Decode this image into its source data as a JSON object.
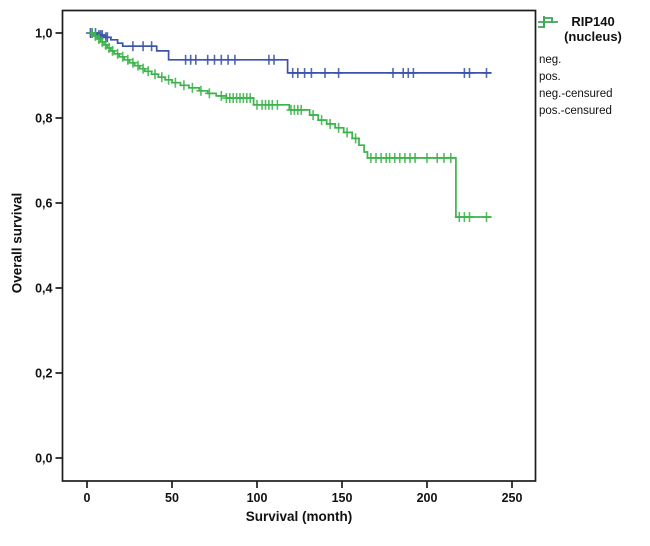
{
  "legend": {
    "title_lines": [
      "RIP140",
      "(nucleus)"
    ],
    "entries": [
      {
        "label": "neg.",
        "symbol": "step-line",
        "series": "neg"
      },
      {
        "label": "pos.",
        "symbol": "step-line",
        "series": "pos"
      },
      {
        "label": "neg.-censured",
        "symbol": "censor-cross",
        "series": "neg"
      },
      {
        "label": "pos.-censured",
        "symbol": "censor-cross",
        "series": "pos"
      }
    ]
  },
  "chart_data": {
    "type": "line",
    "subtype": "kaplan-meier-step",
    "title": "RIP140 (nucleus)",
    "grid": false,
    "legend_position": "outside-top-right",
    "frame_color": "#1c1c1c",
    "background": "#ffffff",
    "colors": {
      "neg": "#3a53a8",
      "pos": "#3cb44b"
    },
    "x_axis": {
      "label": "Survival (month)",
      "range": [
        0,
        250
      ],
      "ticks": [
        {
          "value": 0,
          "label": "0"
        },
        {
          "value": 50,
          "label": "50"
        },
        {
          "value": 100,
          "label": "100"
        },
        {
          "value": 150,
          "label": "150"
        },
        {
          "value": 200,
          "label": "200"
        },
        {
          "value": 250,
          "label": "250"
        }
      ]
    },
    "y_axis": {
      "label": "Overall survival",
      "range": [
        0.0,
        1.0
      ],
      "ticks": [
        {
          "value": 0.0,
          "label": "0,0"
        },
        {
          "value": 0.2,
          "label": "0,2"
        },
        {
          "value": 0.4,
          "label": "0,4"
        },
        {
          "value": 0.6,
          "label": "0,6"
        },
        {
          "value": 0.8,
          "label": "0,8"
        },
        {
          "value": 1.0,
          "label": "1,0"
        }
      ]
    },
    "series": [
      {
        "id": "neg",
        "name": "neg.",
        "color": "#3a53a8",
        "end_month": 238,
        "steps": [
          [
            0,
            1.0
          ],
          [
            6,
            0.995
          ],
          [
            10,
            0.99
          ],
          [
            14,
            0.984
          ],
          [
            18,
            0.976
          ],
          [
            21,
            0.969
          ],
          [
            41,
            0.958
          ],
          [
            48,
            0.937
          ],
          [
            118,
            0.906
          ]
        ],
        "censor_months": [
          2,
          3,
          5,
          7,
          8,
          9,
          11,
          12,
          27,
          33,
          38,
          58,
          61,
          64,
          71,
          75,
          79,
          83,
          87,
          107,
          110,
          121,
          124,
          128,
          132,
          140,
          148,
          180,
          186,
          189,
          192,
          222,
          225,
          235
        ]
      },
      {
        "id": "pos",
        "name": "pos.",
        "color": "#3cb44b",
        "end_month": 238,
        "steps": [
          [
            0,
            1.0
          ],
          [
            4,
            0.993
          ],
          [
            6,
            0.986
          ],
          [
            8,
            0.979
          ],
          [
            10,
            0.972
          ],
          [
            12,
            0.965
          ],
          [
            14,
            0.958
          ],
          [
            16,
            0.951
          ],
          [
            19,
            0.944
          ],
          [
            22,
            0.937
          ],
          [
            25,
            0.93
          ],
          [
            28,
            0.923
          ],
          [
            31,
            0.916
          ],
          [
            34,
            0.91
          ],
          [
            38,
            0.903
          ],
          [
            42,
            0.896
          ],
          [
            46,
            0.89
          ],
          [
            50,
            0.883
          ],
          [
            55,
            0.877
          ],
          [
            60,
            0.871
          ],
          [
            66,
            0.864
          ],
          [
            71,
            0.858
          ],
          [
            76,
            0.852
          ],
          [
            82,
            0.847
          ],
          [
            98,
            0.831
          ],
          [
            119,
            0.819
          ],
          [
            131,
            0.807
          ],
          [
            136,
            0.795
          ],
          [
            141,
            0.786
          ],
          [
            146,
            0.777
          ],
          [
            151,
            0.766
          ],
          [
            156,
            0.752
          ],
          [
            160,
            0.736
          ],
          [
            163,
            0.72
          ],
          [
            165,
            0.706
          ],
          [
            217,
            0.567
          ]
        ],
        "censor_months": [
          3,
          5,
          7,
          9,
          11,
          13,
          15,
          18,
          21,
          24,
          27,
          30,
          33,
          36,
          40,
          44,
          48,
          52,
          57,
          62,
          67,
          72,
          79,
          82,
          84,
          86,
          88,
          90,
          92,
          94,
          96,
          100,
          103,
          105,
          107,
          109,
          112,
          120,
          122,
          124,
          126,
          133,
          138,
          143,
          148,
          153,
          158,
          167,
          170,
          173,
          176,
          178,
          181,
          184,
          187,
          190,
          193,
          200,
          206,
          210,
          214,
          219,
          222,
          225,
          235
        ]
      }
    ]
  }
}
